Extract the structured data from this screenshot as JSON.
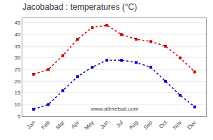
{
  "chart_data": {
    "type": "line",
    "title": "Jacobabad : temperatures (°C)",
    "categories": [
      "Jan",
      "Feb",
      "Mar",
      "Apr",
      "May",
      "Jun",
      "Jul",
      "Aug",
      "Sep",
      "Oct",
      "Nov",
      "Dec"
    ],
    "series": [
      {
        "color": "#cc0000",
        "values": [
          23,
          25,
          31,
          38,
          43,
          44,
          40,
          38,
          37,
          35,
          30,
          24
        ]
      },
      {
        "color": "#0000cc",
        "values": [
          8,
          10,
          16,
          22,
          26,
          29,
          29,
          28,
          26,
          20,
          14,
          9
        ]
      }
    ],
    "marker": "square",
    "line_style": "dotted",
    "ylim": [
      5,
      47
    ],
    "yticks": [
      5,
      10,
      15,
      20,
      25,
      30,
      35,
      40,
      45
    ],
    "grid": true,
    "annotations": [
      "www.allmetsat.com"
    ]
  }
}
